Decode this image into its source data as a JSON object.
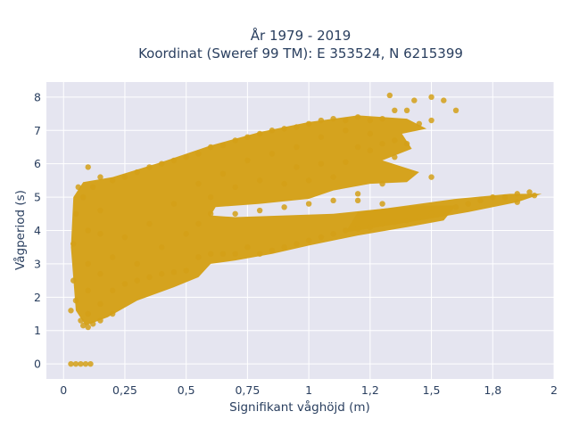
{
  "chart_data": {
    "type": "scatter",
    "title_line1": "År 1979 - 2019",
    "title_line2": "Koordinat (Sweref 99 TM): E 353524, N 6215399",
    "xlabel": "Signifikant våghöjd (m)",
    "ylabel": "Vågperiod (s)",
    "xlim": [
      -0.07,
      2.0
    ],
    "ylim": [
      -0.45,
      8.45
    ],
    "x_ticks": [
      0,
      0.25,
      0.5,
      0.75,
      1,
      1.25,
      1.5,
      1.75,
      2
    ],
    "x_tick_labels": [
      "0",
      "0,25",
      "0,5",
      "0,75",
      "1",
      "1,2",
      "1,5",
      "1,8",
      "2"
    ],
    "y_ticks": [
      0,
      1,
      2,
      3,
      4,
      5,
      6,
      7,
      8
    ],
    "y_tick_labels": [
      "0",
      "1",
      "2",
      "3",
      "4",
      "5",
      "6",
      "7",
      "8"
    ],
    "grid": true,
    "legend": "none",
    "colors": {
      "marker": "#d4a017",
      "plot_bg": "#e5e5f0",
      "grid": "#ffffff"
    },
    "series": [
      {
        "points": [
          [
            0.03,
            0.0
          ],
          [
            0.05,
            0.0
          ],
          [
            0.07,
            0.0
          ],
          [
            0.09,
            0.0
          ],
          [
            0.11,
            0.0
          ],
          [
            0.03,
            1.6
          ],
          [
            0.05,
            1.9
          ],
          [
            0.07,
            1.3
          ],
          [
            0.08,
            1.15
          ],
          [
            0.1,
            1.1
          ],
          [
            0.12,
            1.2
          ],
          [
            0.15,
            1.3
          ],
          [
            0.2,
            1.5
          ],
          [
            0.04,
            2.5
          ],
          [
            0.04,
            3.6
          ],
          [
            0.05,
            4.5
          ],
          [
            0.06,
            5.3
          ],
          [
            0.08,
            5.0
          ],
          [
            0.1,
            5.9
          ],
          [
            0.12,
            5.3
          ],
          [
            0.15,
            5.6
          ],
          [
            0.2,
            5.5
          ],
          [
            0.25,
            5.6
          ],
          [
            0.3,
            5.75
          ],
          [
            0.35,
            5.9
          ],
          [
            0.4,
            6.0
          ],
          [
            0.45,
            6.1
          ],
          [
            0.5,
            6.2
          ],
          [
            0.55,
            6.3
          ],
          [
            0.6,
            6.5
          ],
          [
            0.65,
            6.55
          ],
          [
            0.7,
            6.7
          ],
          [
            0.75,
            6.8
          ],
          [
            0.8,
            6.9
          ],
          [
            0.85,
            7.0
          ],
          [
            0.9,
            7.05
          ],
          [
            0.95,
            7.1
          ],
          [
            1.0,
            7.2
          ],
          [
            1.05,
            7.3
          ],
          [
            1.1,
            7.35
          ],
          [
            1.15,
            7.3
          ],
          [
            1.2,
            7.4
          ],
          [
            1.25,
            7.3
          ],
          [
            1.3,
            7.35
          ],
          [
            1.35,
            7.6
          ],
          [
            1.4,
            7.6
          ],
          [
            1.45,
            7.2
          ],
          [
            1.5,
            7.3
          ],
          [
            1.55,
            7.9
          ],
          [
            1.6,
            7.6
          ],
          [
            1.33,
            8.05
          ],
          [
            1.43,
            7.9
          ],
          [
            1.5,
            8.0
          ],
          [
            1.2,
            6.5
          ],
          [
            1.25,
            6.9
          ],
          [
            1.3,
            6.6
          ],
          [
            1.35,
            6.7
          ],
          [
            1.4,
            6.6
          ],
          [
            1.2,
            5.1
          ],
          [
            1.3,
            5.4
          ],
          [
            1.5,
            5.6
          ],
          [
            0.1,
            1.5
          ],
          [
            0.15,
            1.8
          ],
          [
            0.2,
            2.2
          ],
          [
            0.25,
            2.4
          ],
          [
            0.3,
            2.5
          ],
          [
            0.35,
            2.6
          ],
          [
            0.4,
            2.7
          ],
          [
            0.45,
            2.75
          ],
          [
            0.5,
            2.8
          ],
          [
            0.55,
            3.2
          ],
          [
            0.6,
            3.3
          ],
          [
            0.65,
            3.3
          ],
          [
            0.7,
            3.3
          ],
          [
            0.75,
            3.5
          ],
          [
            0.8,
            3.3
          ],
          [
            0.85,
            3.4
          ],
          [
            0.9,
            3.5
          ],
          [
            0.95,
            3.6
          ],
          [
            1.0,
            3.7
          ],
          [
            1.05,
            3.8
          ],
          [
            1.1,
            3.9
          ],
          [
            1.15,
            4.0
          ],
          [
            1.2,
            4.05
          ],
          [
            1.25,
            4.1
          ],
          [
            1.3,
            4.2
          ],
          [
            1.35,
            4.25
          ],
          [
            1.4,
            4.3
          ],
          [
            1.45,
            4.4
          ],
          [
            1.5,
            4.5
          ],
          [
            1.55,
            4.6
          ],
          [
            1.6,
            4.7
          ],
          [
            1.65,
            4.8
          ],
          [
            1.7,
            4.9
          ],
          [
            1.75,
            5.0
          ],
          [
            1.8,
            5.0
          ],
          [
            1.85,
            5.1
          ],
          [
            1.9,
            5.15
          ],
          [
            1.92,
            5.05
          ],
          [
            1.85,
            4.85
          ],
          [
            0.6,
            4.5
          ],
          [
            0.7,
            4.5
          ],
          [
            0.8,
            4.6
          ],
          [
            0.9,
            4.7
          ],
          [
            1.0,
            4.8
          ],
          [
            1.1,
            4.9
          ],
          [
            1.2,
            4.9
          ],
          [
            1.3,
            4.8
          ],
          [
            0.9,
            5.4
          ],
          [
            1.0,
            5.5
          ],
          [
            1.1,
            5.6
          ],
          [
            0.95,
            5.9
          ],
          [
            1.05,
            6.0
          ],
          [
            1.15,
            6.05
          ],
          [
            1.25,
            6.4
          ],
          [
            1.35,
            6.2
          ],
          [
            0.3,
            3.0
          ],
          [
            0.4,
            3.5
          ],
          [
            0.5,
            3.9
          ],
          [
            0.55,
            4.2
          ],
          [
            0.45,
            4.8
          ],
          [
            0.35,
            4.2
          ],
          [
            0.25,
            3.8
          ],
          [
            0.2,
            3.2
          ],
          [
            0.6,
            5.0
          ],
          [
            0.7,
            5.3
          ],
          [
            0.8,
            5.5
          ],
          [
            0.65,
            5.7
          ],
          [
            0.55,
            5.4
          ],
          [
            0.75,
            6.1
          ],
          [
            0.85,
            6.3
          ],
          [
            0.95,
            6.5
          ],
          [
            1.05,
            6.8
          ],
          [
            1.15,
            7.0
          ],
          [
            0.15,
            2.7
          ],
          [
            0.15,
            3.9
          ],
          [
            0.15,
            4.6
          ],
          [
            0.1,
            2.2
          ],
          [
            0.1,
            3.0
          ],
          [
            0.1,
            4.0
          ]
        ]
      }
    ]
  }
}
